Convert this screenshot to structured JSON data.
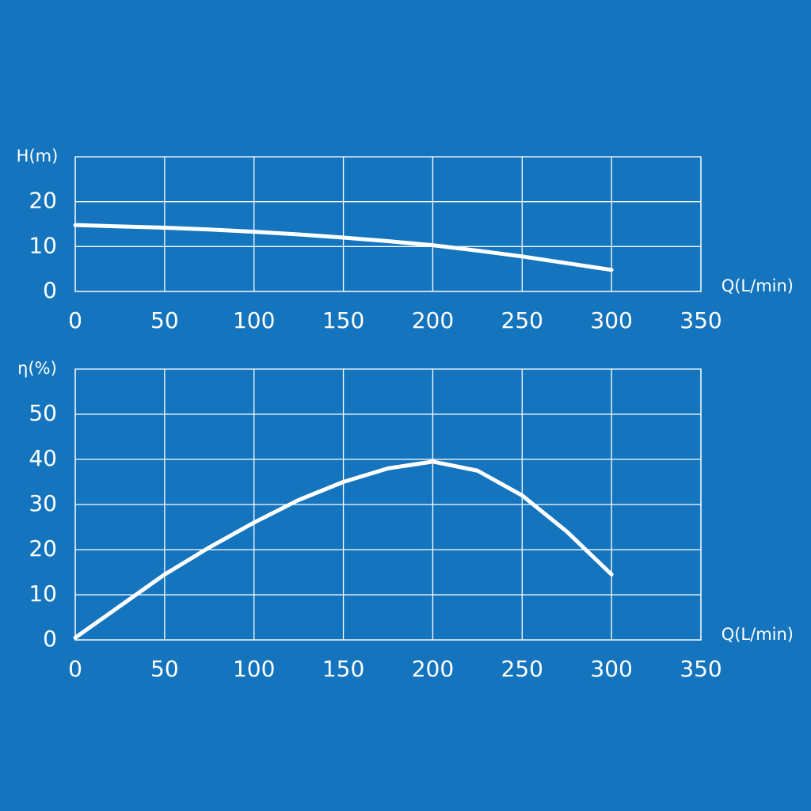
{
  "chart_data": [
    {
      "type": "line",
      "y_label": "H(m)",
      "x_label": "Q(L/min)",
      "x": [
        0,
        25,
        50,
        75,
        100,
        125,
        150,
        175,
        200,
        225,
        250,
        275,
        300
      ],
      "series": [
        {
          "color": "#ffffff",
          "values": [
            14.8,
            14.5,
            14.2,
            13.8,
            13.3,
            12.7,
            12,
            11.2,
            10.3,
            9.1,
            7.8,
            6.3,
            4.8
          ]
        }
      ],
      "xlim": [
        0,
        350
      ],
      "xticks": [
        0,
        50,
        100,
        150,
        200,
        250,
        300,
        350
      ],
      "ylim": [
        0,
        30
      ],
      "yticks": [
        0,
        10,
        20
      ],
      "grid": true
    },
    {
      "type": "line",
      "y_label": "η(%)",
      "x_label": "Q(L/min)",
      "x": [
        0,
        25,
        50,
        75,
        100,
        125,
        150,
        175,
        200,
        225,
        250,
        275,
        300
      ],
      "series": [
        {
          "color": "#ffffff",
          "values": [
            0.5,
            7.5,
            14.5,
            20.5,
            26,
            31,
            35,
            38,
            39.5,
            37.5,
            32,
            24,
            14.5
          ]
        }
      ],
      "xlim": [
        0,
        350
      ],
      "xticks": [
        0,
        50,
        100,
        150,
        200,
        250,
        300,
        350
      ],
      "ylim": [
        0,
        60
      ],
      "yticks": [
        0,
        10,
        20,
        30,
        40,
        50
      ],
      "grid": true
    }
  ]
}
